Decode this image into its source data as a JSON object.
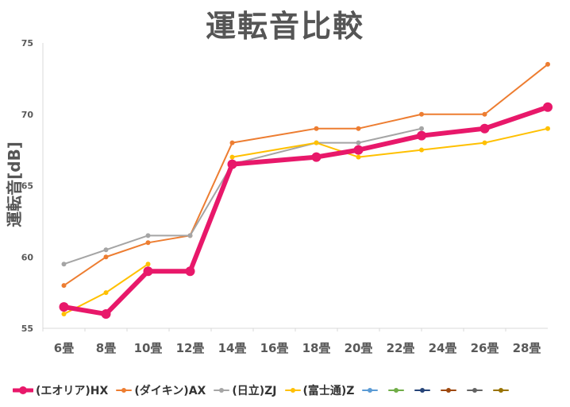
{
  "chart_data": {
    "type": "line",
    "title": "運転音比較",
    "xlabel": "",
    "ylabel": "運転音[dB]",
    "categories": [
      "6畳",
      "8畳",
      "10畳",
      "12畳",
      "14畳",
      "16畳",
      "18畳",
      "20畳",
      "22畳",
      "24畳",
      "26畳",
      "28畳"
    ],
    "ylim": [
      55,
      75
    ],
    "yticks": [
      55,
      60,
      65,
      70,
      75
    ],
    "grid": false,
    "legend": "bottom",
    "series": [
      {
        "name": "(エオリア)HX",
        "color": "#e8186a",
        "width": 6,
        "marker": 6,
        "points": [
          [
            0,
            56.5
          ],
          [
            1,
            56
          ],
          [
            2,
            59
          ],
          [
            3,
            59
          ],
          [
            4,
            66.5
          ],
          [
            6,
            67
          ],
          [
            7,
            67.5
          ],
          [
            8.5,
            68.5
          ],
          [
            10,
            69
          ],
          [
            11.5,
            70.5
          ]
        ]
      },
      {
        "name": "(ダイキン)AX",
        "color": "#ed7d31",
        "width": 2,
        "marker": 3,
        "points": [
          [
            0,
            58
          ],
          [
            1,
            60
          ],
          [
            2,
            61
          ],
          [
            3,
            61.5
          ],
          [
            4,
            68
          ],
          [
            6,
            69
          ],
          [
            7,
            69
          ],
          [
            8.5,
            70
          ],
          [
            10,
            70
          ],
          [
            11.5,
            73.5
          ]
        ]
      },
      {
        "name": "(日立)ZJ",
        "color": "#a5a5a5",
        "width": 2,
        "marker": 3,
        "points": [
          [
            0,
            59.5
          ],
          [
            1,
            60.5
          ],
          [
            2,
            61.5
          ],
          [
            3,
            61.5
          ],
          [
            4,
            66.5
          ],
          [
            6,
            68
          ],
          [
            7,
            68
          ],
          [
            8.5,
            69
          ]
        ]
      },
      {
        "name": "(富士通)Z",
        "color": "#ffc000",
        "width": 2,
        "marker": 3,
        "points": [
          [
            0,
            56
          ],
          [
            1,
            57.5
          ],
          [
            2,
            59.5
          ]
        ]
      },
      {
        "name": "(富士通)Z",
        "color": "#ffc000",
        "width": 2,
        "marker": 3,
        "hidden_in_legend": true,
        "points": [
          [
            4,
            67
          ],
          [
            6,
            68
          ],
          [
            7,
            67
          ],
          [
            8.5,
            67.5
          ],
          [
            10,
            68
          ],
          [
            11.5,
            69
          ]
        ]
      },
      {
        "name": "",
        "color": "#5b9bd5",
        "width": 2,
        "marker": 3,
        "points": []
      },
      {
        "name": "",
        "color": "#70ad47",
        "width": 2,
        "marker": 3,
        "points": []
      },
      {
        "name": "",
        "color": "#264478",
        "width": 2,
        "marker": 3,
        "points": []
      },
      {
        "name": "",
        "color": "#9e480e",
        "width": 2,
        "marker": 3,
        "points": []
      },
      {
        "name": "",
        "color": "#636363",
        "width": 2,
        "marker": 3,
        "points": []
      },
      {
        "name": "",
        "color": "#997300",
        "width": 2,
        "marker": 3,
        "points": []
      }
    ]
  }
}
